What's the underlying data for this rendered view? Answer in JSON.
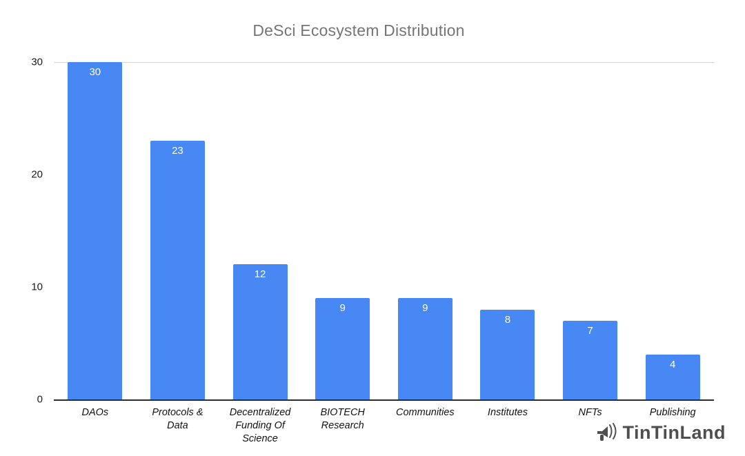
{
  "chart_data": {
    "type": "bar",
    "title": "DeSci Ecosystem Distribution",
    "categories": [
      "DAOs",
      "Protocols &\nData",
      "Decentralized\nFunding Of\nScience",
      "BIOTECH\nResearch",
      "Communities",
      "Institutes",
      "NFTs",
      "Publishing"
    ],
    "values": [
      30,
      23,
      12,
      9,
      9,
      8,
      7,
      4
    ],
    "xlabel": "",
    "ylabel": "",
    "ylim": [
      0,
      30
    ],
    "yticks": [
      0,
      10,
      20,
      30
    ],
    "bar_color": "#4788f4",
    "legend": "none",
    "grid": "top-gridline-only",
    "value_labels": "inside-top-white"
  },
  "watermark": {
    "text": "TinTinLand",
    "icon": "megaphone-icon"
  }
}
